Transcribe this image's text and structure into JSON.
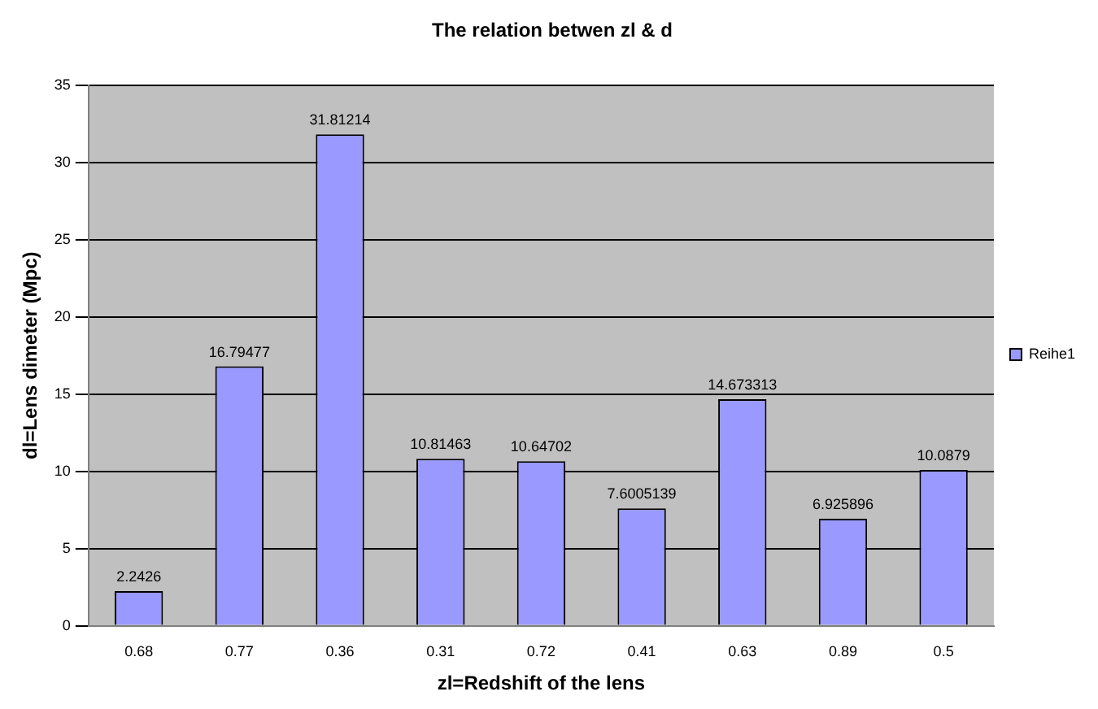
{
  "chart_data": {
    "type": "bar",
    "title": "The relation betwen zl & d",
    "xlabel": "zl=Redshift of the lens",
    "ylabel": "dl=Lens dimeter (Mpc)",
    "categories": [
      "0.68",
      "0.77",
      "0.36",
      "0.31",
      "0.72",
      "0.41",
      "0.63",
      "0.89",
      "0.5"
    ],
    "series": [
      {
        "name": "Reihe1",
        "color": "#9999ff",
        "values": [
          2.2426,
          16.79477,
          31.81214,
          10.81463,
          10.64702,
          7.6005139,
          14.673313,
          6.925896,
          10.0879
        ]
      }
    ],
    "ylim": [
      0,
      35
    ],
    "yticks": [
      0,
      5,
      10,
      15,
      20,
      25,
      30,
      35
    ],
    "grid": "y",
    "legend": "right",
    "data_labels": true
  }
}
